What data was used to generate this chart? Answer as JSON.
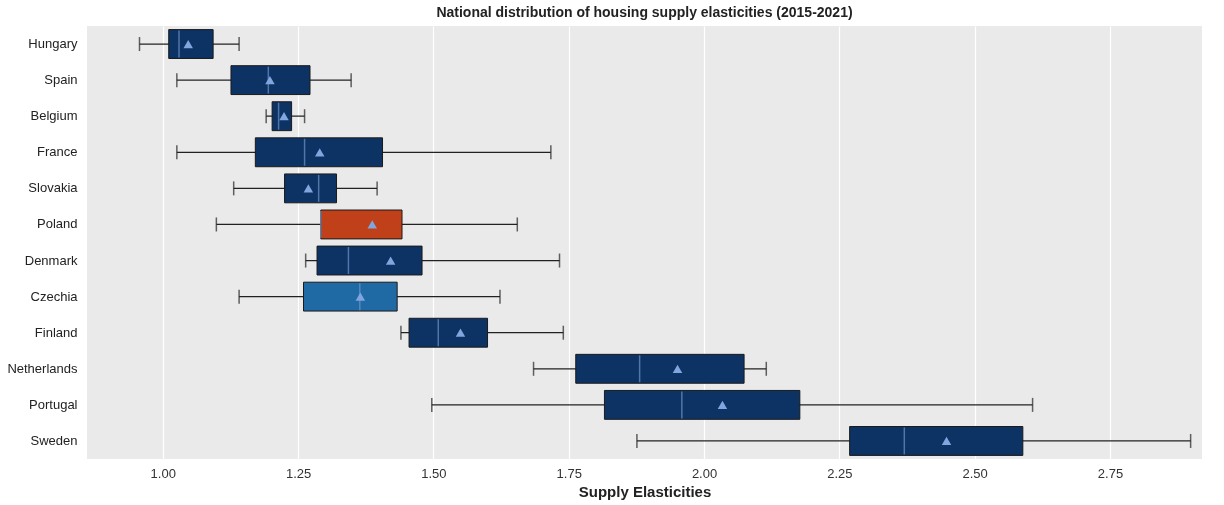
{
  "chart_data": {
    "type": "box",
    "orientation": "horizontal",
    "title": "National distribution of housing supply elasticities (2015-2021)",
    "xlabel": "Supply Elasticities",
    "categories": [
      "Hungary",
      "Spain",
      "Belgium",
      "France",
      "Slovakia",
      "Poland",
      "Denmark",
      "Czechia",
      "Finland",
      "Netherlands",
      "Portugal",
      "Sweden"
    ],
    "colors": [
      "#0d3264",
      "#0d3264",
      "#0d3264",
      "#0d3264",
      "#0d3264",
      "#c0401a",
      "#0d3264",
      "#1f6aa5",
      "#0d3264",
      "#0d3264",
      "#0d3264",
      "#0d3264"
    ],
    "boxes": [
      {
        "low": 0.957,
        "q1": 1.011,
        "median": 1.03,
        "q3": 1.093,
        "high": 1.141,
        "mean": 1.047
      },
      {
        "low": 1.026,
        "q1": 1.126,
        "median": 1.195,
        "q3": 1.272,
        "high": 1.348,
        "mean": 1.198
      },
      {
        "low": 1.191,
        "q1": 1.202,
        "median": 1.214,
        "q3": 1.238,
        "high": 1.262,
        "mean": 1.224
      },
      {
        "low": 1.026,
        "q1": 1.171,
        "median": 1.262,
        "q3": 1.406,
        "high": 1.717,
        "mean": 1.29
      },
      {
        "low": 1.131,
        "q1": 1.225,
        "median": 1.288,
        "q3": 1.321,
        "high": 1.396,
        "mean": 1.269
      },
      {
        "low": 1.099,
        "q1": 1.292,
        "median": 1.292,
        "q3": 1.442,
        "high": 1.655,
        "mean": 1.387
      },
      {
        "low": 1.264,
        "q1": 1.285,
        "median": 1.343,
        "q3": 1.479,
        "high": 1.733,
        "mean": 1.421
      },
      {
        "low": 1.141,
        "q1": 1.26,
        "median": 1.364,
        "q3": 1.433,
        "high": 1.623,
        "mean": 1.365
      },
      {
        "low": 1.44,
        "q1": 1.455,
        "median": 1.509,
        "q3": 1.6,
        "high": 1.74,
        "mean": 1.55
      },
      {
        "low": 1.685,
        "q1": 1.763,
        "median": 1.881,
        "q3": 2.074,
        "high": 2.115,
        "mean": 1.951
      },
      {
        "low": 1.497,
        "q1": 1.816,
        "median": 1.959,
        "q3": 2.177,
        "high": 2.607,
        "mean": 2.034
      },
      {
        "low": 1.876,
        "q1": 2.269,
        "median": 2.37,
        "q3": 2.589,
        "high": 2.899,
        "mean": 2.448
      }
    ],
    "xlim": [
      0.86,
      2.92
    ],
    "xticks": [
      {
        "value": 1,
        "label": "1.00"
      },
      {
        "value": 1.25,
        "label": "1.25"
      },
      {
        "value": 1.5,
        "label": "1.50"
      },
      {
        "value": 1.75,
        "label": "1.75"
      },
      {
        "value": 2,
        "label": "2.00"
      },
      {
        "value": 2.25,
        "label": "2.25"
      },
      {
        "value": 2.5,
        "label": "2.50"
      },
      {
        "value": 2.75,
        "label": "2.75"
      }
    ],
    "grid": "x",
    "marker": "triangle"
  }
}
